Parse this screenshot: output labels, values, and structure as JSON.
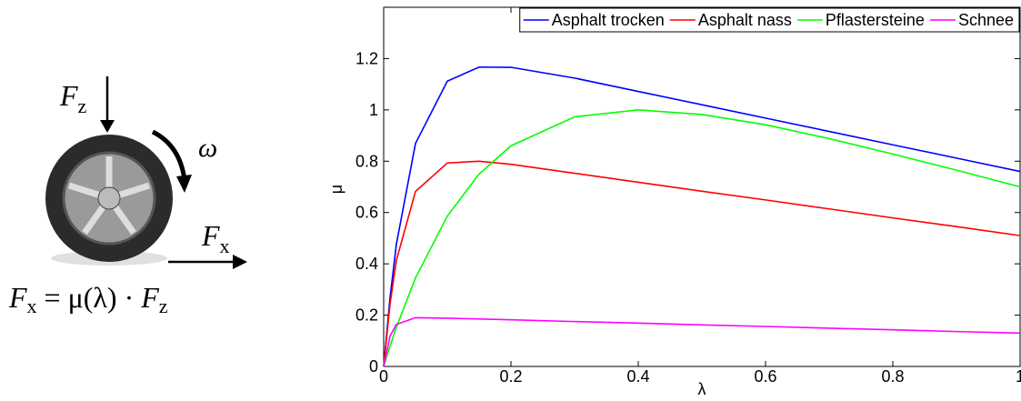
{
  "diagram": {
    "force_z": {
      "symbol": "F",
      "subscript": "z"
    },
    "omega": "ω",
    "force_x": {
      "symbol": "F",
      "subscript": "x"
    },
    "formula": [
      "F",
      "x",
      " = μ(λ) · ",
      "F",
      "z"
    ]
  },
  "chart_data": {
    "type": "line",
    "x_label": "λ",
    "y_label": "μ",
    "x": [
      0,
      0.01,
      0.02,
      0.05,
      0.1,
      0.15,
      0.2,
      0.3,
      0.4,
      0.5,
      0.6,
      0.7,
      0.8,
      0.9,
      1.0
    ],
    "series": [
      {
        "name": "Asphalt trocken",
        "color": "#0000ff",
        "values": [
          0,
          0.268,
          0.477,
          0.869,
          1.112,
          1.167,
          1.166,
          1.124,
          1.072,
          1.02,
          0.968,
          0.916,
          0.864,
          0.812,
          0.76
        ]
      },
      {
        "name": "Asphalt nass",
        "color": "#ff0000",
        "values": [
          0,
          0.243,
          0.414,
          0.682,
          0.793,
          0.8,
          0.788,
          0.753,
          0.718,
          0.683,
          0.649,
          0.614,
          0.579,
          0.545,
          0.51
        ]
      },
      {
        "name": "Pflastersteine",
        "color": "#00ff00",
        "values": [
          0,
          0.079,
          0.153,
          0.345,
          0.586,
          0.75,
          0.86,
          0.973,
          1.0,
          0.982,
          0.942,
          0.888,
          0.828,
          0.765,
          0.7
        ]
      },
      {
        "name": "Schnee",
        "color": "#ff00ff",
        "values": [
          0,
          0.118,
          0.164,
          0.19,
          0.188,
          0.185,
          0.182,
          0.175,
          0.169,
          0.162,
          0.156,
          0.149,
          0.143,
          0.136,
          0.13
        ]
      }
    ],
    "xlim": [
      0,
      1
    ],
    "ylim": [
      0,
      1.4
    ],
    "xticks": [
      0,
      0.2,
      0.4,
      0.6,
      0.8,
      1
    ],
    "yticks": [
      0,
      0.2,
      0.4,
      0.6,
      0.8,
      1,
      1.2
    ],
    "legend": "top-right"
  }
}
